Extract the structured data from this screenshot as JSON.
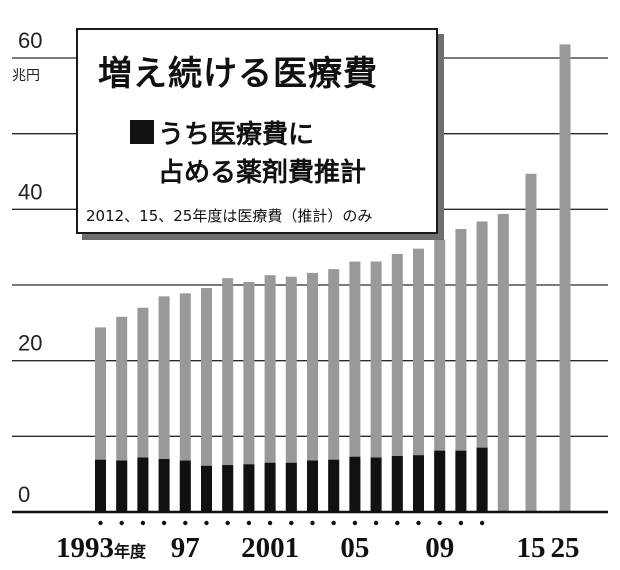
{
  "chart_data": {
    "type": "bar",
    "title": "増え続ける医療費",
    "unit_label": "兆円",
    "legend": {
      "series_label_line1": "うち医療費に",
      "series_label_line2": "占める薬剤費推計",
      "note": "2012、15、25年度は医療費（推計）のみ"
    },
    "ylim": [
      0,
      60
    ],
    "y_ticks": [
      "0",
      "20",
      "40",
      "60"
    ],
    "gridlines": [
      10,
      20,
      30,
      40,
      50,
      60
    ],
    "grid": true,
    "categories": [
      "1993",
      "1994",
      "1995",
      "1996",
      "1997",
      "1998",
      "1999",
      "2000",
      "2001",
      "2002",
      "2003",
      "2004",
      "2005",
      "2006",
      "2007",
      "2008",
      "2009",
      "2010",
      "2011",
      "2012",
      "2015",
      "2025"
    ],
    "x_tick_labels": [
      {
        "category": "1993",
        "text": "1993",
        "suffix": "年度"
      },
      {
        "category": "1997",
        "text": "97",
        "suffix": ""
      },
      {
        "category": "2001",
        "text": "2001",
        "suffix": ""
      },
      {
        "category": "2005",
        "text": "05",
        "suffix": ""
      },
      {
        "category": "2009",
        "text": "09",
        "suffix": ""
      },
      {
        "category": "2015",
        "text": "15",
        "suffix": ""
      },
      {
        "category": "2025",
        "text": "25",
        "suffix": ""
      }
    ],
    "series": [
      {
        "name": "医療費",
        "color": "#999999",
        "values": [
          24.4,
          25.8,
          27.0,
          28.5,
          28.9,
          29.6,
          30.9,
          30.4,
          31.3,
          31.1,
          31.6,
          32.1,
          33.1,
          33.1,
          34.1,
          34.8,
          36.0,
          37.4,
          38.4,
          39.4,
          44.7,
          61.8
        ]
      },
      {
        "name": "うち医療費に占める薬剤費推計",
        "color": "#111111",
        "values": [
          6.9,
          6.8,
          7.2,
          7.0,
          6.8,
          6.1,
          6.2,
          6.3,
          6.5,
          6.5,
          6.8,
          6.9,
          7.3,
          7.2,
          7.4,
          7.5,
          8.1,
          8.1,
          8.5,
          null,
          null,
          null
        ]
      }
    ],
    "category_dots": [
      "1993",
      "1994",
      "1995",
      "1996",
      "1997",
      "1998",
      "1999",
      "2000",
      "2001",
      "2002",
      "2003",
      "2004",
      "2005",
      "2006",
      "2007",
      "2008",
      "2009",
      "2010",
      "2011"
    ]
  }
}
